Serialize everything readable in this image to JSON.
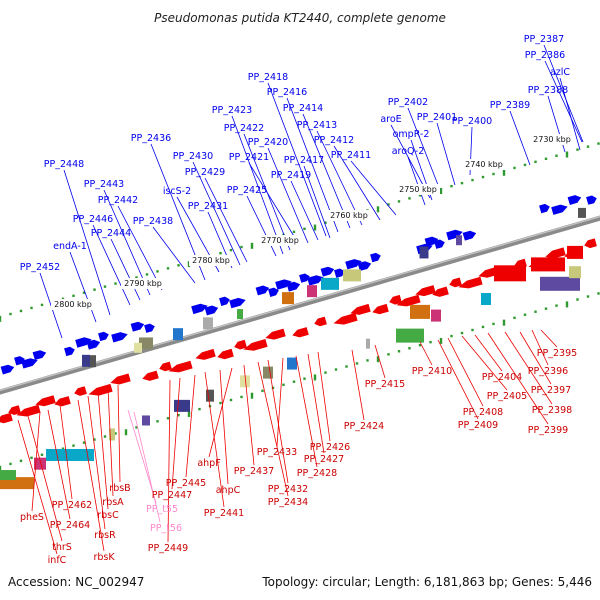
{
  "header": {
    "title": "Pseudomonas putida KT2440, complete genome"
  },
  "footer": {
    "accession": "Accession: NC_002947",
    "summary": "Topology: circular; Length: 6,181,863 bp; Genes: 5,446"
  },
  "scale_labels": [
    "2730 kbp",
    "2740 kbp",
    "2750 kbp",
    "2760 kbp",
    "2770 kbp",
    "2780 kbp",
    "2790 kbp",
    "2800 kbp"
  ],
  "colors": {
    "forward": "#0000ee",
    "reverse": "#ee0000",
    "rna": "#ff88cc",
    "backbone": "#8a8a8a"
  },
  "forward_genes": [
    "PP_2387",
    "PP_2386",
    "azlC",
    "PP_2388",
    "PP_2389",
    "PP_2400",
    "PP_2401",
    "PP_2402",
    "aroE",
    "ompR-2",
    "aroQ-2",
    "PP_2411",
    "PP_2412",
    "PP_2413",
    "PP_2414",
    "PP_2416",
    "PP_2418",
    "PP_2417",
    "PP_2419",
    "PP_2420",
    "PP_2421",
    "PP_2422",
    "PP_2423",
    "PP_2425",
    "PP_2429",
    "PP_2430",
    "PP_2431",
    "iscS-2",
    "PP_2436",
    "PP_2438",
    "PP_2442",
    "PP_2443",
    "PP_2444",
    "PP_2446",
    "PP_2448",
    "endA-1",
    "PP_2452"
  ],
  "reverse_genes": [
    "PP_2395",
    "PP_2396",
    "PP_2397",
    "PP_2398",
    "PP_2399",
    "PP_2404",
    "PP_2405",
    "PP_2408",
    "PP_2409",
    "PP_2410",
    "PP_2415",
    "PP_2424",
    "PP_2426",
    "PP_2427",
    "PP_2428",
    "PP_2433",
    "PP_2432",
    "PP_2434",
    "PP_2437",
    "ahpF",
    "ahpC",
    "PP_2441",
    "PP_2445",
    "PP_2447",
    "PP_2449",
    "rbsB",
    "rbsA",
    "rbsC",
    "rbsR",
    "rbsK",
    "PP_2462",
    "PP_2464",
    "pheS",
    "thrS",
    "infC"
  ],
  "rna_genes": [
    "PP_t55",
    "PP_t56"
  ]
}
